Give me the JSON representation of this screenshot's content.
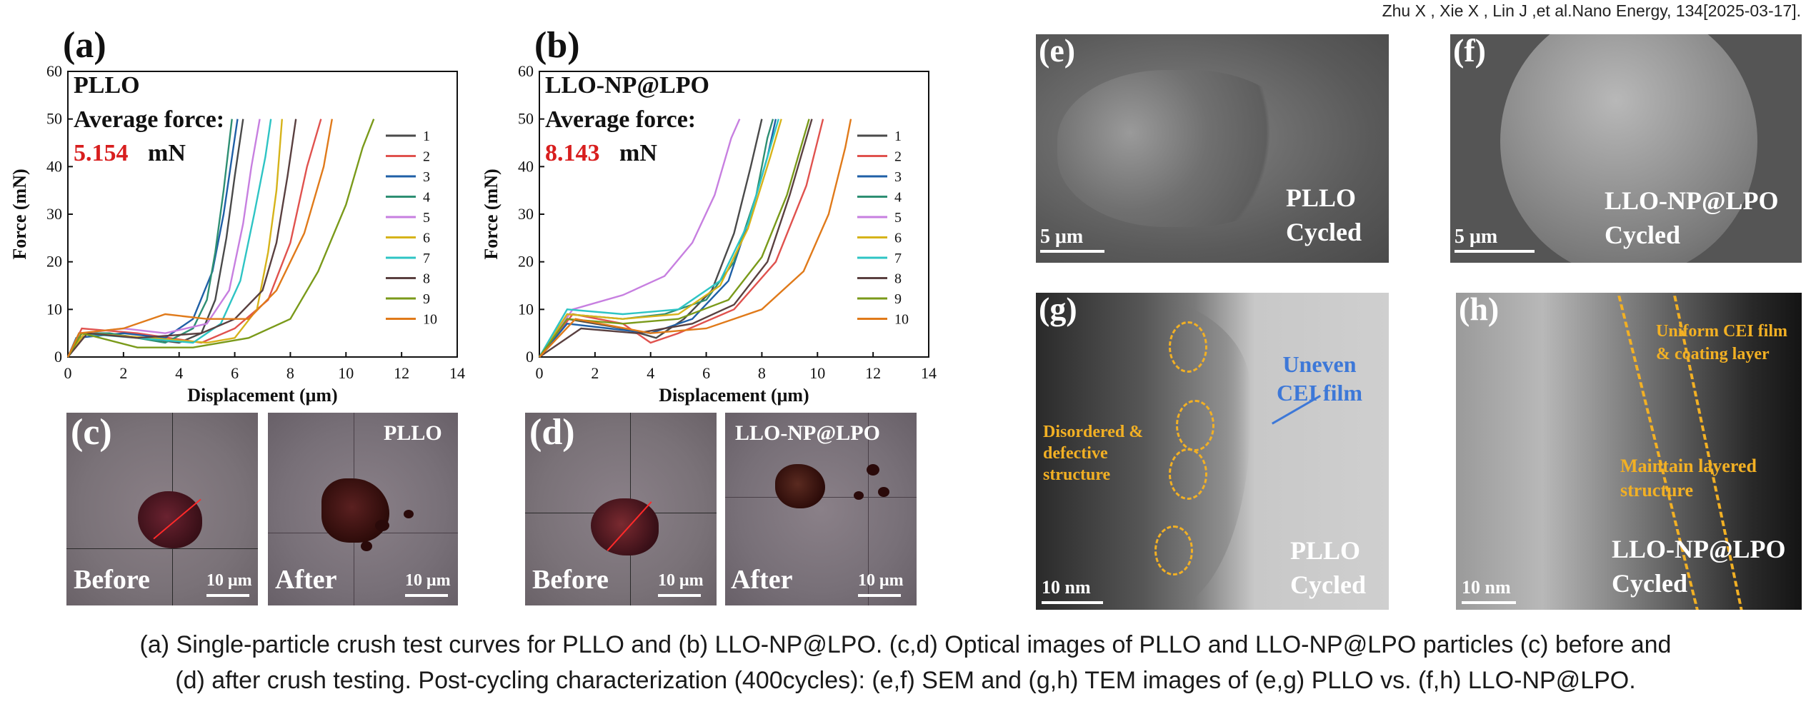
{
  "citation": "Zhu X , Xie X , Lin J ,et al.Nano Energy, 134[2025-03-17].",
  "caption": {
    "line1": "(a) Single-particle crush test curves for PLLO and (b) LLO-NP@LPO. (c,d) Optical images of PLLO and LLO-NP@LPO particles (c) before and",
    "line2": "(d) after crush testing. Post-cycling characterization (400cycles): (e,f) SEM and (g,h) TEM images of (e,g) PLLO vs. (f,h) LLO-NP@LPO."
  },
  "colors": {
    "highlight": "#d81e1e",
    "annotation_yellow": "#f2b024",
    "annotation_blue": "#3d78d8"
  },
  "series_colors": [
    "#4a4a4a",
    "#e0524e",
    "#1f5fa6",
    "#2e8f73",
    "#c77fe0",
    "#d6b31a",
    "#2ec4c4",
    "#5a4040",
    "#7a9a1a",
    "#e07a1a"
  ],
  "chart_data": [
    {
      "panel": "(a)",
      "type": "line",
      "sample": "PLLO",
      "note_label": "Average force:",
      "note_value": "5.154",
      "note_unit": "mN",
      "xlabel": "Displacement (μm)",
      "ylabel": "Force (mN)",
      "xlim": [
        0,
        14
      ],
      "ylim": [
        0,
        60
      ],
      "xticks": [
        0,
        2,
        4,
        6,
        8,
        10,
        12,
        14
      ],
      "yticks": [
        0,
        10,
        20,
        30,
        40,
        50,
        60
      ],
      "grid": false,
      "legend_position": "right",
      "series": [
        {
          "name": "1",
          "points": [
            [
              0,
              0
            ],
            [
              0.4,
              5
            ],
            [
              2,
              4.5
            ],
            [
              4,
              3
            ],
            [
              4.8,
              5
            ],
            [
              5.3,
              12
            ],
            [
              5.7,
              25
            ],
            [
              6,
              38
            ],
            [
              6.3,
              50
            ]
          ]
        },
        {
          "name": "2",
          "points": [
            [
              0,
              0
            ],
            [
              0.5,
              6
            ],
            [
              2.5,
              5
            ],
            [
              4.8,
              3
            ],
            [
              6,
              6
            ],
            [
              7.2,
              12
            ],
            [
              8,
              24
            ],
            [
              8.6,
              40
            ],
            [
              9.1,
              50
            ]
          ]
        },
        {
          "name": "3",
          "points": [
            [
              0,
              0
            ],
            [
              0.3,
              4
            ],
            [
              2,
              5
            ],
            [
              3.5,
              4
            ],
            [
              4.5,
              8
            ],
            [
              5.2,
              18
            ],
            [
              5.6,
              30
            ],
            [
              5.9,
              42
            ],
            [
              6.1,
              50
            ]
          ]
        },
        {
          "name": "4",
          "points": [
            [
              0,
              0
            ],
            [
              0.5,
              5
            ],
            [
              1.5,
              5
            ],
            [
              3.5,
              3
            ],
            [
              4.5,
              6
            ],
            [
              5,
              12
            ],
            [
              5.3,
              22
            ],
            [
              5.6,
              35
            ],
            [
              5.9,
              50
            ]
          ]
        },
        {
          "name": "5",
          "points": [
            [
              0,
              0
            ],
            [
              0.5,
              5
            ],
            [
              2,
              6
            ],
            [
              3.5,
              5
            ],
            [
              5,
              7
            ],
            [
              5.8,
              14
            ],
            [
              6.3,
              28
            ],
            [
              6.6,
              40
            ],
            [
              6.9,
              50
            ]
          ]
        },
        {
          "name": "6",
          "points": [
            [
              0,
              0
            ],
            [
              0.6,
              5
            ],
            [
              3,
              4
            ],
            [
              5,
              3
            ],
            [
              6,
              4
            ],
            [
              6.8,
              10
            ],
            [
              7.2,
              22
            ],
            [
              7.5,
              35
            ],
            [
              7.7,
              50
            ]
          ]
        },
        {
          "name": "7",
          "points": [
            [
              0,
              0
            ],
            [
              0.4,
              5
            ],
            [
              2.5,
              4
            ],
            [
              4.5,
              3
            ],
            [
              5.5,
              7
            ],
            [
              6.2,
              16
            ],
            [
              6.7,
              30
            ],
            [
              7.1,
              42
            ],
            [
              7.3,
              50
            ]
          ]
        },
        {
          "name": "8",
          "points": [
            [
              0,
              0
            ],
            [
              0.7,
              5
            ],
            [
              2.5,
              4
            ],
            [
              4.8,
              5
            ],
            [
              6,
              8
            ],
            [
              7,
              14
            ],
            [
              7.5,
              24
            ],
            [
              7.9,
              38
            ],
            [
              8.2,
              50
            ]
          ]
        },
        {
          "name": "9",
          "points": [
            [
              0,
              0
            ],
            [
              0.5,
              5
            ],
            [
              2.5,
              2
            ],
            [
              4.5,
              2
            ],
            [
              6.5,
              4
            ],
            [
              8,
              8
            ],
            [
              9,
              18
            ],
            [
              10,
              32
            ],
            [
              10.6,
              44
            ],
            [
              11,
              50
            ]
          ]
        },
        {
          "name": "10",
          "points": [
            [
              0,
              0
            ],
            [
              0.4,
              5
            ],
            [
              2,
              6
            ],
            [
              3.5,
              9
            ],
            [
              5,
              8
            ],
            [
              6.5,
              8
            ],
            [
              7.5,
              14
            ],
            [
              8.5,
              26
            ],
            [
              9.2,
              40
            ],
            [
              9.5,
              50
            ]
          ]
        }
      ]
    },
    {
      "panel": "(b)",
      "type": "line",
      "sample": "LLO-NP@LPO",
      "note_label": "Average force:",
      "note_value": "8.143",
      "note_unit": "mN",
      "xlabel": "Displacement (μm)",
      "ylabel": "Force (mN)",
      "xlim": [
        0,
        14
      ],
      "ylim": [
        0,
        60
      ],
      "xticks": [
        0,
        2,
        4,
        6,
        8,
        10,
        12,
        14
      ],
      "yticks": [
        0,
        10,
        20,
        30,
        40,
        50,
        60
      ],
      "grid": false,
      "legend_position": "right",
      "series": [
        {
          "name": "1",
          "points": [
            [
              0,
              0
            ],
            [
              1,
              8
            ],
            [
              3,
              6
            ],
            [
              4.2,
              4
            ],
            [
              5.2,
              8
            ],
            [
              6.2,
              14
            ],
            [
              7,
              26
            ],
            [
              7.6,
              40
            ],
            [
              8,
              50
            ]
          ]
        },
        {
          "name": "2",
          "points": [
            [
              0,
              0
            ],
            [
              1.2,
              9
            ],
            [
              3,
              7
            ],
            [
              4,
              3
            ],
            [
              5,
              5
            ],
            [
              7,
              10
            ],
            [
              8.5,
              20
            ],
            [
              9.6,
              36
            ],
            [
              10.2,
              50
            ]
          ]
        },
        {
          "name": "3",
          "points": [
            [
              0,
              0
            ],
            [
              1,
              7
            ],
            [
              2.5,
              6
            ],
            [
              4,
              5
            ],
            [
              5.5,
              8
            ],
            [
              6.8,
              16
            ],
            [
              7.6,
              30
            ],
            [
              8.2,
              42
            ],
            [
              8.5,
              50
            ]
          ]
        },
        {
          "name": "4",
          "points": [
            [
              0,
              0
            ],
            [
              1,
              9
            ],
            [
              3,
              8
            ],
            [
              4.5,
              9
            ],
            [
              6,
              12
            ],
            [
              7,
              20
            ],
            [
              7.8,
              34
            ],
            [
              8.2,
              46
            ],
            [
              8.4,
              50
            ]
          ]
        },
        {
          "name": "5",
          "points": [
            [
              0,
              0
            ],
            [
              1.2,
              10
            ],
            [
              3,
              13
            ],
            [
              4.5,
              17
            ],
            [
              5.5,
              24
            ],
            [
              6.3,
              34
            ],
            [
              6.9,
              46
            ],
            [
              7.2,
              50
            ]
          ]
        },
        {
          "name": "6",
          "points": [
            [
              0,
              0
            ],
            [
              1,
              9
            ],
            [
              3,
              8
            ],
            [
              5,
              9
            ],
            [
              6.5,
              15
            ],
            [
              7.5,
              27
            ],
            [
              8.3,
              42
            ],
            [
              8.7,
              50
            ]
          ]
        },
        {
          "name": "7",
          "points": [
            [
              0,
              0
            ],
            [
              1,
              10
            ],
            [
              3,
              9
            ],
            [
              5,
              10
            ],
            [
              6.5,
              16
            ],
            [
              7.5,
              28
            ],
            [
              8.2,
              42
            ],
            [
              8.6,
              50
            ]
          ]
        },
        {
          "name": "8",
          "points": [
            [
              0,
              0
            ],
            [
              1.5,
              6
            ],
            [
              3.5,
              5
            ],
            [
              5.5,
              7
            ],
            [
              7,
              11
            ],
            [
              8.2,
              20
            ],
            [
              9,
              34
            ],
            [
              9.6,
              46
            ],
            [
              9.8,
              50
            ]
          ]
        },
        {
          "name": "9",
          "points": [
            [
              0,
              0
            ],
            [
              1,
              8
            ],
            [
              3,
              7
            ],
            [
              5,
              8
            ],
            [
              6.8,
              12
            ],
            [
              8,
              21
            ],
            [
              8.9,
              34
            ],
            [
              9.5,
              46
            ],
            [
              9.7,
              50
            ]
          ]
        },
        {
          "name": "10",
          "points": [
            [
              0,
              0
            ],
            [
              1.3,
              8
            ],
            [
              4,
              5
            ],
            [
              6,
              6
            ],
            [
              8,
              10
            ],
            [
              9.5,
              18
            ],
            [
              10.4,
              30
            ],
            [
              11,
              44
            ],
            [
              11.2,
              50
            ]
          ]
        }
      ]
    }
  ],
  "panels": {
    "c": {
      "label": "(c)",
      "before": "Before",
      "after": "After",
      "sample": "PLLO",
      "scale": "10 μm"
    },
    "d": {
      "label": "(d)",
      "before": "Before",
      "after": "After",
      "sample": "LLO-NP@LPO",
      "scale": "10 μm"
    },
    "e": {
      "label": "(e)",
      "text1": "PLLO",
      "text2": "Cycled",
      "scale": "5 μm"
    },
    "f": {
      "label": "(f)",
      "text1": "LLO-NP@LPO",
      "text2": "Cycled",
      "scale": "5 μm"
    },
    "g": {
      "label": "(g)",
      "note_blue": "Uneven CEI film",
      "note_yellow": "Disordered & defective structure",
      "text1": "PLLO",
      "text2": "Cycled",
      "scale": "10 nm"
    },
    "h": {
      "label": "(h)",
      "note1": "Uniform CEI film & coating layer",
      "note2": "Maintain layered structure",
      "text1": "LLO-NP@LPO",
      "text2": "Cycled",
      "scale": "10 nm"
    }
  }
}
